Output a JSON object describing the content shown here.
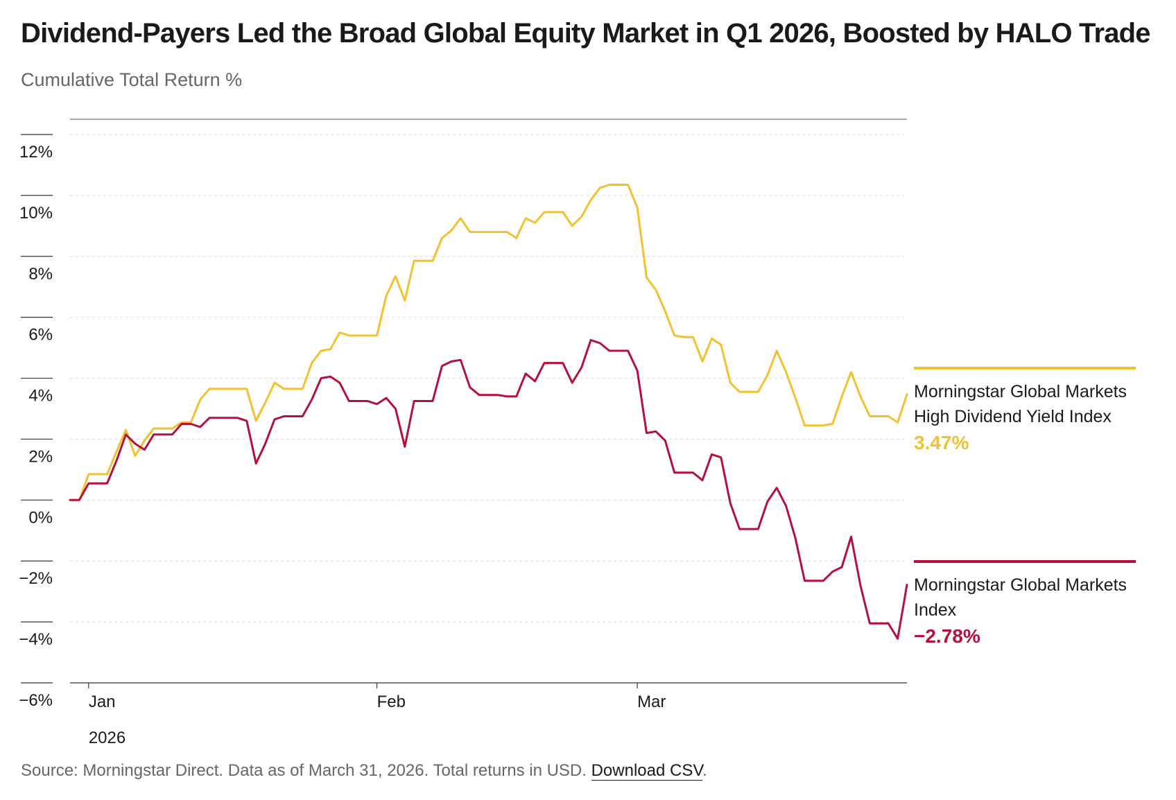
{
  "header": {
    "title": "Dividend-Payers Led the Broad Global Equity Market in Q1 2026, Boosted by HALO Trade",
    "subtitle": "Cumulative Total Return %"
  },
  "footer": {
    "source_text": "Source: Morningstar Direct. Data as of March 31, 2026. Total returns in USD.",
    "download_label": "Download CSV",
    "trailing": "."
  },
  "colors": {
    "high_dividend": "#f2c12e",
    "global_markets": "#b5103c",
    "grid": "#d9d9d9",
    "axis": "#333333"
  },
  "legend": {
    "high_dividend": {
      "name": "Morningstar Global Markets High Dividend Yield Index",
      "value": "3.47%"
    },
    "global_markets": {
      "name": "Morningstar Global Markets Index",
      "value": "−2.78%"
    }
  },
  "chart_data": {
    "type": "line",
    "ylabel": "Cumulative Total Return %",
    "ylim": [
      -6,
      12
    ],
    "yticks": [
      12,
      10,
      8,
      6,
      4,
      2,
      0,
      -2,
      -4,
      -6
    ],
    "ytick_labels": [
      "12%",
      "10%",
      "8%",
      "6%",
      "4%",
      "2%",
      "0%",
      "−2%",
      "−4%",
      "−6%"
    ],
    "xlim": [
      "2025-12-31",
      "2026-03-31"
    ],
    "xticks": [
      {
        "date": "2026-01-02",
        "label": "Jan",
        "sublabel": "2026"
      },
      {
        "date": "2026-02-02",
        "label": "Feb",
        "sublabel": ""
      },
      {
        "date": "2026-03-02",
        "label": "Mar",
        "sublabel": ""
      }
    ],
    "grid": true,
    "dates": [
      "2025-12-31",
      "2026-01-01",
      "2026-01-02",
      "2026-01-03",
      "2026-01-04",
      "2026-01-05",
      "2026-01-06",
      "2026-01-07",
      "2026-01-08",
      "2026-01-09",
      "2026-01-10",
      "2026-01-11",
      "2026-01-12",
      "2026-01-13",
      "2026-01-14",
      "2026-01-15",
      "2026-01-16",
      "2026-01-17",
      "2026-01-18",
      "2026-01-19",
      "2026-01-20",
      "2026-01-21",
      "2026-01-22",
      "2026-01-23",
      "2026-01-24",
      "2026-01-25",
      "2026-01-26",
      "2026-01-27",
      "2026-01-28",
      "2026-01-29",
      "2026-01-30",
      "2026-01-31",
      "2026-02-01",
      "2026-02-02",
      "2026-02-03",
      "2026-02-04",
      "2026-02-05",
      "2026-02-06",
      "2026-02-07",
      "2026-02-08",
      "2026-02-09",
      "2026-02-10",
      "2026-02-11",
      "2026-02-12",
      "2026-02-13",
      "2026-02-14",
      "2026-02-15",
      "2026-02-16",
      "2026-02-17",
      "2026-02-18",
      "2026-02-19",
      "2026-02-20",
      "2026-02-21",
      "2026-02-22",
      "2026-02-23",
      "2026-02-24",
      "2026-02-25",
      "2026-02-26",
      "2026-02-27",
      "2026-02-28",
      "2026-03-01",
      "2026-03-02",
      "2026-03-03",
      "2026-03-04",
      "2026-03-05",
      "2026-03-06",
      "2026-03-07",
      "2026-03-08",
      "2026-03-09",
      "2026-03-10",
      "2026-03-11",
      "2026-03-12",
      "2026-03-13",
      "2026-03-14",
      "2026-03-15",
      "2026-03-16",
      "2026-03-17",
      "2026-03-18",
      "2026-03-19",
      "2026-03-20",
      "2026-03-21",
      "2026-03-22",
      "2026-03-23",
      "2026-03-24",
      "2026-03-25",
      "2026-03-26",
      "2026-03-27",
      "2026-03-28",
      "2026-03-29",
      "2026-03-30",
      "2026-03-31"
    ],
    "series": [
      {
        "name": "Morningstar Global Markets High Dividend Yield Index",
        "key": "high_dividend",
        "values": [
          0,
          0,
          0.85,
          0.85,
          0.85,
          1.6,
          2.3,
          1.45,
          1.95,
          2.35,
          2.35,
          2.35,
          2.55,
          2.55,
          3.3,
          3.65,
          3.65,
          3.65,
          3.65,
          3.65,
          2.6,
          3.2,
          3.85,
          3.65,
          3.65,
          3.65,
          4.5,
          4.9,
          4.95,
          5.5,
          5.4,
          5.4,
          5.4,
          5.4,
          6.7,
          7.35,
          6.55,
          7.85,
          7.85,
          7.85,
          8.6,
          8.85,
          9.25,
          8.8,
          8.8,
          8.8,
          8.8,
          8.8,
          8.6,
          9.25,
          9.1,
          9.45,
          9.45,
          9.45,
          9.0,
          9.3,
          9.85,
          10.25,
          10.35,
          10.35,
          10.35,
          9.6,
          7.3,
          6.9,
          6.2,
          5.4,
          5.35,
          5.35,
          4.55,
          5.3,
          5.1,
          3.85,
          3.55,
          3.55,
          3.55,
          4.1,
          4.9,
          4.2,
          3.35,
          2.45,
          2.45,
          2.45,
          2.5,
          3.4,
          4.2,
          3.4,
          2.75,
          2.75,
          2.75,
          2.55,
          3.47
        ]
      },
      {
        "name": "Morningstar Global Markets Index",
        "key": "global_markets",
        "values": [
          0,
          0,
          0.55,
          0.55,
          0.55,
          1.3,
          2.15,
          1.85,
          1.65,
          2.15,
          2.15,
          2.15,
          2.5,
          2.5,
          2.4,
          2.7,
          2.7,
          2.7,
          2.7,
          2.6,
          1.2,
          1.85,
          2.65,
          2.75,
          2.75,
          2.75,
          3.3,
          4.0,
          4.05,
          3.85,
          3.25,
          3.25,
          3.25,
          3.15,
          3.35,
          3.0,
          1.75,
          3.25,
          3.25,
          3.25,
          4.4,
          4.55,
          4.6,
          3.7,
          3.45,
          3.45,
          3.45,
          3.4,
          3.4,
          4.15,
          3.9,
          4.5,
          4.5,
          4.5,
          3.85,
          4.35,
          5.25,
          5.15,
          4.9,
          4.9,
          4.9,
          4.25,
          2.2,
          2.25,
          1.95,
          0.9,
          0.9,
          0.9,
          0.65,
          1.5,
          1.4,
          -0.1,
          -0.95,
          -0.95,
          -0.95,
          -0.05,
          0.4,
          -0.2,
          -1.25,
          -2.65,
          -2.65,
          -2.65,
          -2.35,
          -2.2,
          -1.2,
          -2.8,
          -4.05,
          -4.05,
          -4.05,
          -4.55,
          -2.78
        ]
      }
    ]
  }
}
